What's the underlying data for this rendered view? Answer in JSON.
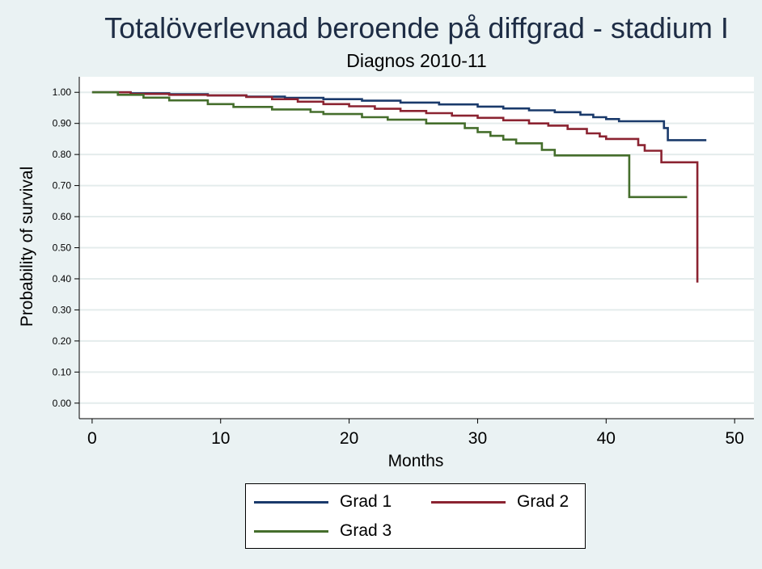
{
  "chart_data": {
    "type": "line",
    "title": "Totalöverlevnad beroende på diffgrad - stadium I",
    "subtitle": "Diagnos 2010-11",
    "xlabel": "Months",
    "ylabel": "Probability of survival",
    "xlim": [
      -1,
      51.5
    ],
    "ylim": [
      -0.05,
      1.05
    ],
    "x_ticks": [
      0,
      10,
      20,
      30,
      40,
      50
    ],
    "x_tick_labels": [
      "0",
      "10",
      "20",
      "30",
      "40",
      "50"
    ],
    "y_ticks": [
      0.0,
      0.1,
      0.2,
      0.3,
      0.4,
      0.5,
      0.6,
      0.7,
      0.8,
      0.9,
      1.0
    ],
    "y_tick_labels": [
      "0.00",
      "0.10",
      "0.20",
      "0.30",
      "0.40",
      "0.50",
      "0.60",
      "0.70",
      "0.80",
      "0.90",
      "1.00"
    ],
    "grid": true,
    "legend_position": "bottom",
    "step": true,
    "series": [
      {
        "name": "Grad 1",
        "color": "#1a3a6b",
        "points": [
          [
            0,
            1.0
          ],
          [
            3,
            0.997
          ],
          [
            6,
            0.994
          ],
          [
            9,
            0.99
          ],
          [
            12,
            0.986
          ],
          [
            15,
            0.982
          ],
          [
            18,
            0.978
          ],
          [
            21,
            0.973
          ],
          [
            24,
            0.967
          ],
          [
            27,
            0.961
          ],
          [
            30,
            0.954
          ],
          [
            32,
            0.948
          ],
          [
            34,
            0.942
          ],
          [
            36,
            0.936
          ],
          [
            38,
            0.928
          ],
          [
            39,
            0.92
          ],
          [
            40,
            0.914
          ],
          [
            41,
            0.907
          ],
          [
            44.5,
            0.885
          ],
          [
            44.8,
            0.846
          ],
          [
            47.8,
            0.846
          ]
        ]
      },
      {
        "name": "Grad 2",
        "color": "#8b2331",
        "points": [
          [
            0,
            1.0
          ],
          [
            3,
            0.995
          ],
          [
            6,
            0.992
          ],
          [
            9,
            0.99
          ],
          [
            12,
            0.985
          ],
          [
            14,
            0.978
          ],
          [
            16,
            0.97
          ],
          [
            18,
            0.962
          ],
          [
            20,
            0.955
          ],
          [
            22,
            0.947
          ],
          [
            24,
            0.94
          ],
          [
            26,
            0.933
          ],
          [
            28,
            0.925
          ],
          [
            30,
            0.918
          ],
          [
            32,
            0.91
          ],
          [
            34,
            0.9
          ],
          [
            35.5,
            0.893
          ],
          [
            37,
            0.882
          ],
          [
            38.5,
            0.868
          ],
          [
            39.5,
            0.858
          ],
          [
            40,
            0.85
          ],
          [
            42.5,
            0.83
          ],
          [
            43,
            0.812
          ],
          [
            44.3,
            0.775
          ],
          [
            47.1,
            0.775
          ],
          [
            47.1,
            0.388
          ]
        ]
      },
      {
        "name": "Grad 3",
        "color": "#456e2c",
        "points": [
          [
            0,
            1.0
          ],
          [
            2,
            0.992
          ],
          [
            4,
            0.983
          ],
          [
            6,
            0.974
          ],
          [
            9,
            0.962
          ],
          [
            11,
            0.953
          ],
          [
            14,
            0.945
          ],
          [
            17,
            0.937
          ],
          [
            18,
            0.93
          ],
          [
            21,
            0.92
          ],
          [
            23,
            0.912
          ],
          [
            26,
            0.9
          ],
          [
            29,
            0.885
          ],
          [
            30,
            0.872
          ],
          [
            31,
            0.86
          ],
          [
            32,
            0.848
          ],
          [
            33,
            0.836
          ],
          [
            35,
            0.815
          ],
          [
            36,
            0.797
          ],
          [
            41.8,
            0.797
          ],
          [
            41.8,
            0.663
          ],
          [
            46.3,
            0.663
          ]
        ]
      }
    ]
  }
}
